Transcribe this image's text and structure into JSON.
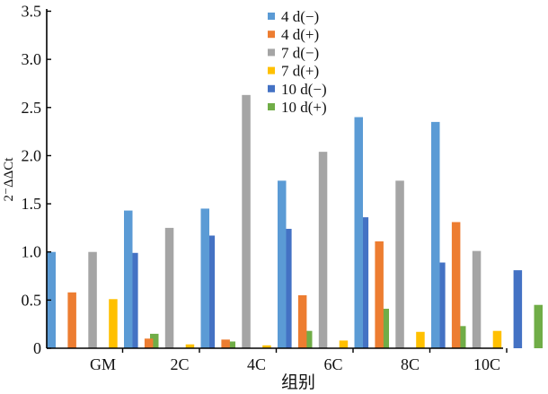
{
  "chart_data": {
    "type": "bar",
    "categories": [
      "GM",
      "2C",
      "4C",
      "6C",
      "8C",
      "10C"
    ],
    "series": [
      {
        "name": "4 d(−)",
        "color": "#5b9bd5",
        "values": [
          1.0,
          1.43,
          1.45,
          1.74,
          2.4,
          2.35
        ]
      },
      {
        "name": "4 d(+)",
        "color": "#ed7d31",
        "values": [
          0.58,
          0.1,
          0.09,
          0.55,
          1.11,
          1.31
        ]
      },
      {
        "name": "7 d(−)",
        "color": "#a5a5a5",
        "values": [
          1.0,
          1.25,
          2.63,
          2.04,
          1.74,
          1.01
        ]
      },
      {
        "name": "7 d(+)",
        "color": "#ffc000",
        "values": [
          0.51,
          0.04,
          0.03,
          0.08,
          0.17,
          0.18
        ]
      },
      {
        "name": "10 d(−)",
        "color": "#4472c4",
        "values": [
          0.99,
          1.17,
          1.24,
          1.36,
          0.89,
          0.81
        ]
      },
      {
        "name": "10 d(+)",
        "color": "#70ad47",
        "values": [
          0.15,
          0.07,
          0.18,
          0.41,
          0.23,
          0.45
        ]
      }
    ],
    "yticks": [
      "0",
      "0.5",
      "1.0",
      "1.5",
      "2.0",
      "2.5",
      "3.0",
      "3.5"
    ],
    "ylim": [
      0,
      3.5
    ],
    "xlabel": "组别",
    "ylabel": "2⁻ΔΔCt",
    "grid": false,
    "legend": "top-center"
  }
}
